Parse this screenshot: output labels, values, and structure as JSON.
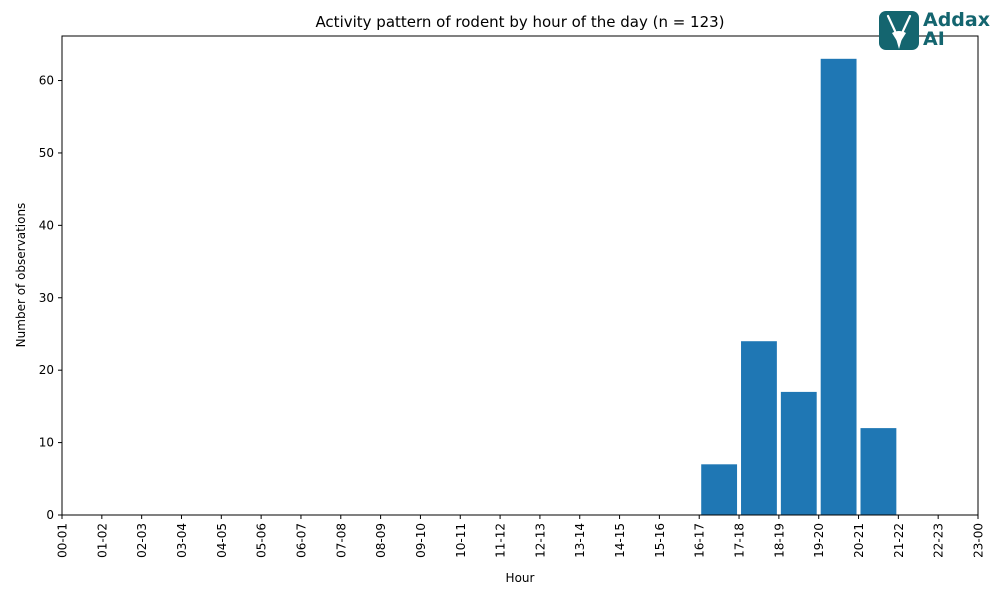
{
  "chart_data": {
    "type": "bar",
    "title": "Activity pattern of rodent by hour of the day (n = 123)",
    "xlabel": "Hour",
    "ylabel": "Number of observations",
    "categories": [
      "00-01",
      "01-02",
      "02-03",
      "03-04",
      "04-05",
      "05-06",
      "06-07",
      "07-08",
      "08-09",
      "09-10",
      "10-11",
      "11-12",
      "12-13",
      "13-14",
      "14-15",
      "15-16",
      "16-17",
      "17-18",
      "18-19",
      "19-20",
      "20-21",
      "21-22",
      "22-23",
      "23-00"
    ],
    "values": [
      0,
      0,
      0,
      0,
      0,
      0,
      0,
      0,
      0,
      0,
      0,
      0,
      0,
      0,
      0,
      0,
      0,
      7,
      24,
      17,
      63,
      12,
      0,
      0
    ],
    "ylim": [
      0,
      66.15
    ],
    "yticks": [
      0,
      10,
      20,
      30,
      40,
      50,
      60
    ],
    "grid": false,
    "bar_color": "#1f77b4"
  },
  "logo": {
    "line1": "Addax",
    "line2": "AI",
    "color": "#14656f"
  }
}
